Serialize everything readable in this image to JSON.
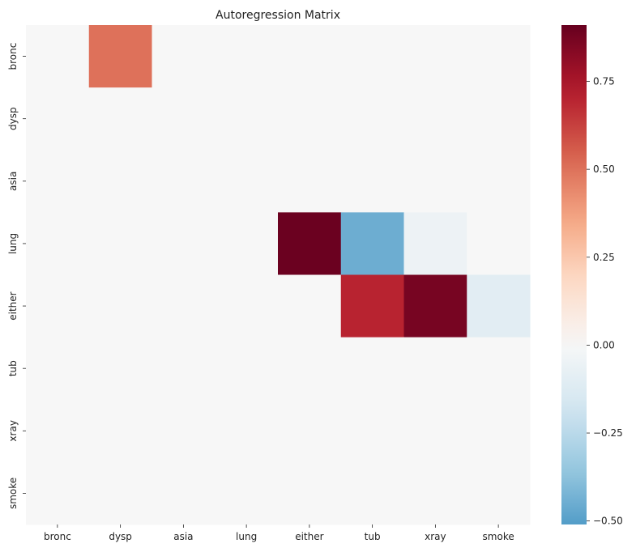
{
  "chart_data": {
    "type": "heatmap",
    "title": "Autoregression Matrix",
    "xlabel": "",
    "ylabel": "",
    "x_categories": [
      "bronc",
      "dysp",
      "asia",
      "lung",
      "either",
      "tub",
      "xray",
      "smoke"
    ],
    "y_categories": [
      "bronc",
      "dysp",
      "asia",
      "lung",
      "either",
      "tub",
      "xray",
      "smoke"
    ],
    "matrix": [
      [
        0,
        0.5,
        0,
        0,
        0,
        0,
        0,
        0
      ],
      [
        0,
        0,
        0,
        0,
        0,
        0,
        0,
        0
      ],
      [
        0,
        0,
        0,
        0,
        0,
        0,
        0,
        0
      ],
      [
        0,
        0,
        0,
        0,
        0.9,
        -0.45,
        -0.05,
        0
      ],
      [
        0,
        0,
        0,
        0,
        0,
        0.7,
        0.87,
        -0.1
      ],
      [
        0,
        0,
        0,
        0,
        0,
        0,
        0,
        0
      ],
      [
        0,
        0,
        0,
        0,
        0,
        0,
        0,
        0
      ],
      [
        0,
        0,
        0,
        0,
        0,
        0,
        0,
        0
      ]
    ],
    "colorbar": {
      "min": -0.51,
      "max": 0.91,
      "ticks": [
        -0.5,
        -0.25,
        0.0,
        0.25,
        0.5,
        0.75
      ],
      "tick_labels": [
        "−0.50",
        "−0.25",
        "0.00",
        "0.25",
        "0.50",
        "0.75"
      ],
      "colormap": "RdBu_r"
    },
    "grid": false
  }
}
